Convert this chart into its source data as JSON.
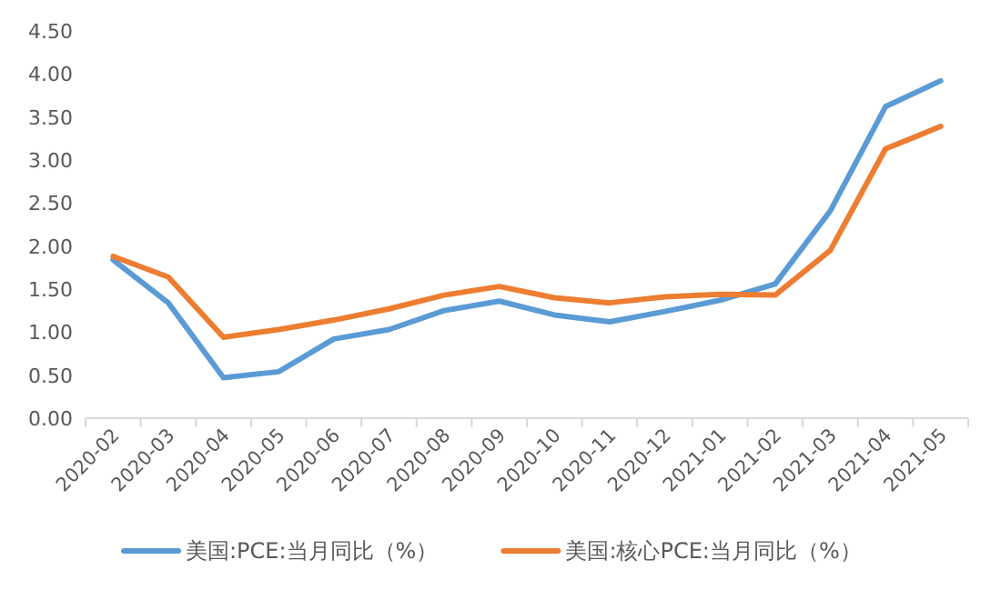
{
  "chart_data": {
    "type": "line",
    "categories": [
      "2020-02",
      "2020-03",
      "2020-04",
      "2020-05",
      "2020-06",
      "2020-07",
      "2020-08",
      "2020-09",
      "2020-10",
      "2020-11",
      "2020-12",
      "2021-01",
      "2021-02",
      "2021-03",
      "2021-04",
      "2021-05"
    ],
    "series": [
      {
        "name": "美国:PCE:当月同比（%）",
        "color": "#5b9bd5",
        "values": [
          1.84,
          1.34,
          0.47,
          0.54,
          0.92,
          1.03,
          1.25,
          1.36,
          1.2,
          1.12,
          1.24,
          1.37,
          1.56,
          2.41,
          3.62,
          3.92
        ]
      },
      {
        "name": "美国:核心PCE:当月同比（%）",
        "color": "#ed7d31",
        "values": [
          1.88,
          1.64,
          0.94,
          1.03,
          1.14,
          1.27,
          1.43,
          1.53,
          1.4,
          1.34,
          1.41,
          1.44,
          1.43,
          1.95,
          3.13,
          3.39
        ]
      }
    ],
    "ylim": [
      0,
      4.5
    ],
    "yticks": [
      {
        "value": 0,
        "label": "0.00"
      },
      {
        "value": 0.5,
        "label": "0.50"
      },
      {
        "value": 1,
        "label": "1.00"
      },
      {
        "value": 1.5,
        "label": "1.50"
      },
      {
        "value": 2,
        "label": "2.00"
      },
      {
        "value": 2.5,
        "label": "2.50"
      },
      {
        "value": 3,
        "label": "3.00"
      },
      {
        "value": 3.5,
        "label": "3.50"
      },
      {
        "value": 4,
        "label": "4.00"
      },
      {
        "value": 4.5,
        "label": "4.50"
      }
    ],
    "legend": "bottom"
  }
}
